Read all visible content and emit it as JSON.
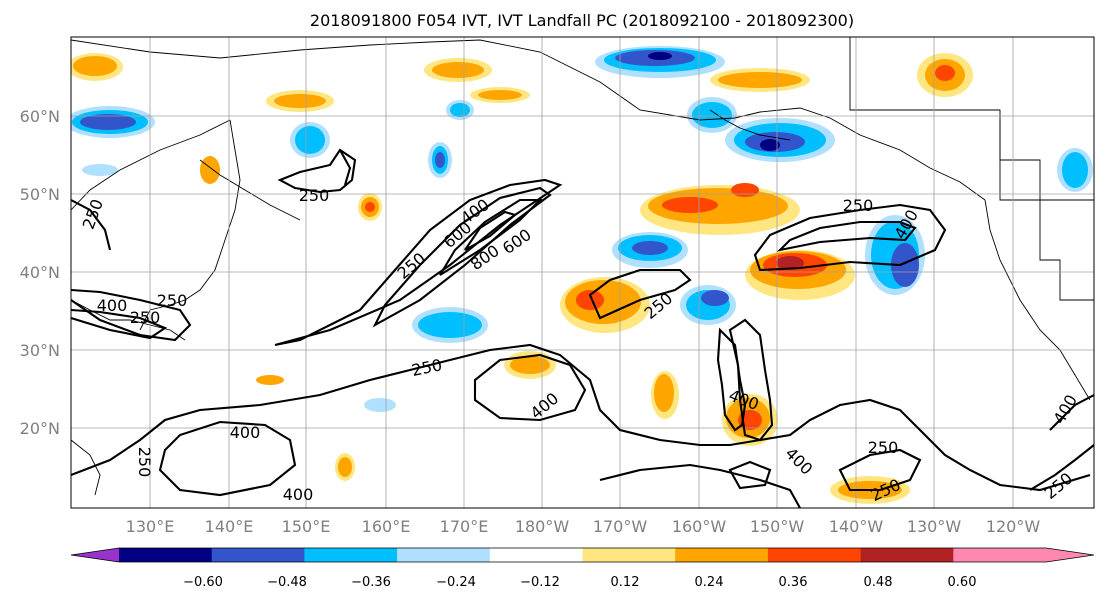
{
  "title": "2018091800 F054 IVT, IVT Landfall PC (2018092100 - 2018092300)",
  "lat_labels": [
    "60°N",
    "50°N",
    "40°N",
    "30°N",
    "20°N"
  ],
  "lon_labels": [
    "130°E",
    "140°E",
    "150°E",
    "160°E",
    "170°E",
    "180°W",
    "170°W",
    "160°W",
    "150°W",
    "140°W",
    "130°W",
    "120°W"
  ],
  "colorbar": {
    "ticks": [
      "−0.60",
      "−0.48",
      "−0.36",
      "−0.24",
      "−0.12",
      "0.12",
      "0.24",
      "0.36",
      "0.48",
      "0.60"
    ],
    "colors": [
      "#9933cc",
      "#000080",
      "#3355cc",
      "#00bfff",
      "#b0e0ff",
      "#ffffff",
      "#ffe680",
      "#ffa500",
      "#ff4500",
      "#b22222",
      "#ff88b0",
      "#ff88b0"
    ]
  },
  "contour_labels": [
    {
      "text": "250"
    },
    {
      "text": "250"
    },
    {
      "text": "400"
    },
    {
      "text": "600"
    },
    {
      "text": "800"
    },
    {
      "text": "600"
    },
    {
      "text": "250"
    },
    {
      "text": "400"
    },
    {
      "text": "250"
    },
    {
      "text": "250"
    },
    {
      "text": "250"
    },
    {
      "text": "400"
    },
    {
      "text": "400"
    },
    {
      "text": "250"
    },
    {
      "text": "400"
    },
    {
      "text": "400"
    },
    {
      "text": "250"
    },
    {
      "text": "250"
    },
    {
      "text": "250"
    },
    {
      "text": "400"
    },
    {
      "text": "250"
    },
    {
      "text": "400"
    },
    {
      "text": "400"
    },
    {
      "text": "250"
    }
  ]
}
